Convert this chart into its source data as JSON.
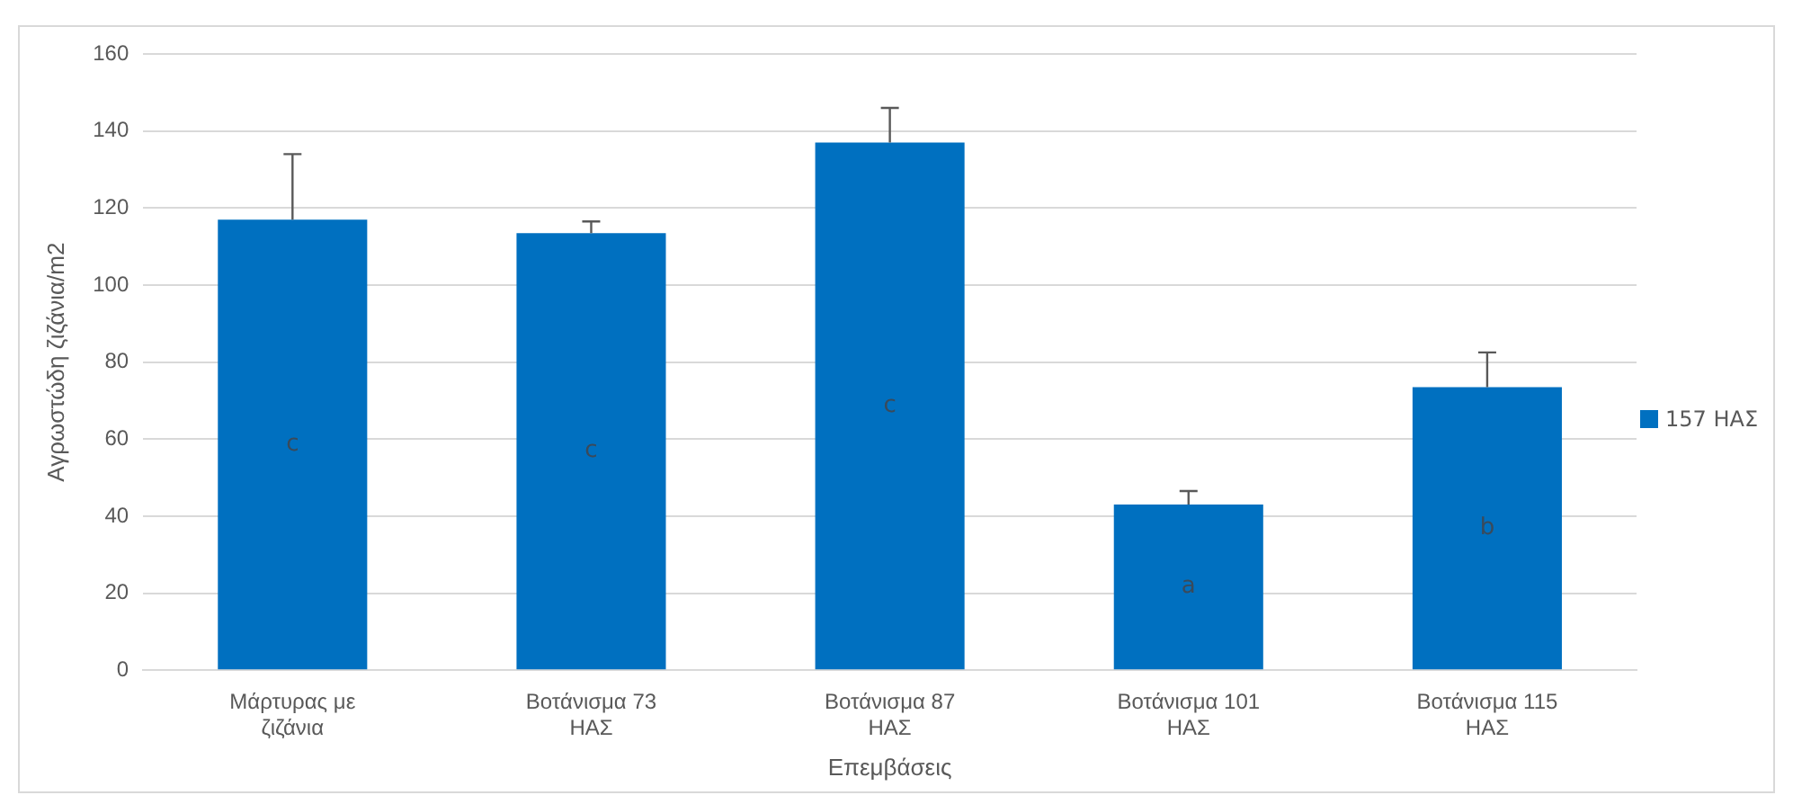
{
  "chart_data": {
    "type": "bar",
    "xlabel": "Επεμβάσεις",
    "ylabel": "Αγρωστώδη ζιζάνια/m2",
    "categories": [
      "Μάρτυρας με ζιζάνια",
      "Βοτάνισμα 73 ΗΑΣ",
      "Βοτάνισμα 87 ΗΑΣ",
      "Βοτάνισμα 101 ΗΑΣ",
      "Βοτάνισμα 115 ΗΑΣ"
    ],
    "series": [
      {
        "name": "157 ΗΑΣ",
        "color": "#0070c0",
        "values": [
          117,
          113.5,
          137,
          43,
          73.5
        ],
        "errors": [
          [
            117,
            134
          ],
          [
            113.5,
            116.5
          ],
          [
            137,
            146
          ],
          [
            43,
            46.5
          ],
          [
            73.5,
            82.5
          ]
        ]
      }
    ],
    "annotations": [
      "c",
      "c",
      "c",
      "a",
      "b"
    ],
    "ylim": [
      0,
      160
    ],
    "yticks": [
      0,
      20,
      40,
      60,
      80,
      100,
      120,
      140,
      160
    ],
    "grid": "y",
    "legend": "right"
  }
}
